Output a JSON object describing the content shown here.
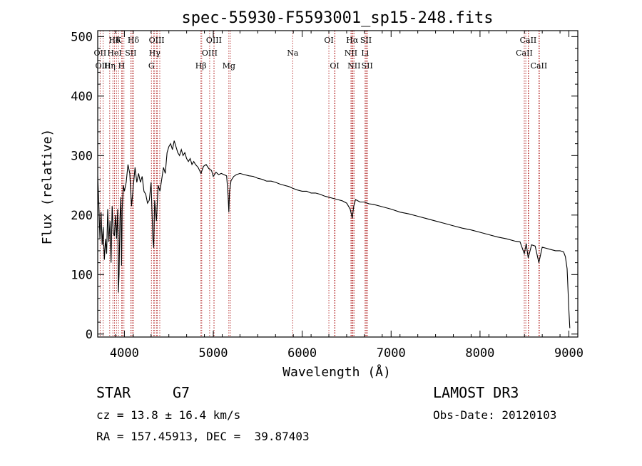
{
  "chart_data": {
    "type": "line",
    "title": "spec-55930-F5593001_sp15-248.fits",
    "xlabel": "Wavelength (Å)",
    "ylabel": "Flux (relative)",
    "xlim": [
      3700,
      9100
    ],
    "ylim": [
      -5,
      510
    ],
    "xticks": [
      4000,
      5000,
      6000,
      7000,
      8000,
      9000
    ],
    "yticks": [
      0,
      100,
      200,
      300,
      400,
      500
    ],
    "grid": false,
    "series": [
      {
        "name": "flux",
        "x": [
          3700,
          3712,
          3725,
          3738,
          3750,
          3762,
          3775,
          3788,
          3800,
          3812,
          3825,
          3838,
          3850,
          3862,
          3875,
          3888,
          3900,
          3912,
          3925,
          3933,
          3940,
          3950,
          3960,
          3968,
          3975,
          3988,
          4000,
          4020,
          4040,
          4060,
          4080,
          4101,
          4120,
          4140,
          4160,
          4180,
          4200,
          4220,
          4240,
          4260,
          4280,
          4300,
          4320,
          4330,
          4340,
          4360,
          4380,
          4400,
          4420,
          4440,
          4460,
          4480,
          4500,
          4520,
          4540,
          4560,
          4580,
          4600,
          4620,
          4640,
          4660,
          4680,
          4700,
          4720,
          4740,
          4760,
          4780,
          4800,
          4830,
          4861,
          4890,
          4920,
          4950,
          4980,
          5000,
          5030,
          5060,
          5090,
          5120,
          5150,
          5167,
          5175,
          5183,
          5200,
          5230,
          5260,
          5300,
          5350,
          5400,
          5450,
          5500,
          5550,
          5600,
          5650,
          5700,
          5750,
          5800,
          5850,
          5893,
          5950,
          6000,
          6050,
          6100,
          6150,
          6200,
          6250,
          6300,
          6350,
          6400,
          6450,
          6500,
          6540,
          6563,
          6580,
          6600,
          6650,
          6700,
          6750,
          6800,
          6900,
          7000,
          7100,
          7200,
          7300,
          7400,
          7500,
          7600,
          7700,
          7800,
          7900,
          8000,
          8100,
          8200,
          8300,
          8400,
          8450,
          8498,
          8520,
          8542,
          8580,
          8620,
          8662,
          8700,
          8750,
          8800,
          8850,
          8900,
          8940,
          8960,
          8980,
          9000,
          9010
        ],
        "values": [
          265,
          220,
          160,
          205,
          150,
          180,
          125,
          160,
          135,
          210,
          155,
          190,
          120,
          215,
          170,
          165,
          200,
          160,
          210,
          70,
          100,
          195,
          230,
          115,
          210,
          250,
          240,
          255,
          285,
          270,
          215,
          250,
          280,
          255,
          270,
          255,
          265,
          240,
          235,
          220,
          225,
          255,
          160,
          145,
          225,
          190,
          250,
          240,
          260,
          280,
          270,
          305,
          315,
          320,
          310,
          325,
          315,
          305,
          300,
          310,
          300,
          305,
          295,
          290,
          295,
          285,
          290,
          285,
          280,
          270,
          282,
          285,
          278,
          275,
          265,
          272,
          268,
          270,
          268,
          266,
          232,
          205,
          240,
          258,
          265,
          268,
          270,
          268,
          266,
          265,
          262,
          260,
          257,
          257,
          255,
          252,
          250,
          248,
          245,
          242,
          240,
          240,
          237,
          237,
          235,
          232,
          230,
          228,
          226,
          224,
          220,
          210,
          195,
          215,
          226,
          222,
          222,
          219,
          218,
          214,
          210,
          205,
          202,
          198,
          194,
          190,
          186,
          182,
          178,
          175,
          171,
          167,
          163,
          160,
          156,
          155,
          135,
          152,
          128,
          150,
          148,
          120,
          146,
          144,
          142,
          140,
          140,
          138,
          130,
          110,
          40,
          10
        ]
      }
    ],
    "spectral_lines": [
      {
        "label": "Hδ",
        "wavelength": 3889,
        "row": 1
      },
      {
        "label": "K",
        "wavelength": 3934,
        "row": 1
      },
      {
        "label": "Hδ",
        "wavelength": 4101,
        "row": 1
      },
      {
        "label": "OIII",
        "wavelength": 4363,
        "row": 1
      },
      {
        "label": "OIII",
        "wavelength": 5007,
        "row": 1
      },
      {
        "label": "OI",
        "wavelength": 6300,
        "row": 1
      },
      {
        "label": "Hα",
        "wavelength": 6563,
        "row": 1
      },
      {
        "label": "SII",
        "wavelength": 6717,
        "row": 1
      },
      {
        "label": "CaII",
        "wavelength": 8542,
        "row": 1
      },
      {
        "label": "OII",
        "wavelength": 3727,
        "row": 2
      },
      {
        "label": "HeI",
        "wavelength": 3889,
        "row": 2
      },
      {
        "label": "SII",
        "wavelength": 4072,
        "row": 2
      },
      {
        "label": "Hγ",
        "wavelength": 4340,
        "row": 2
      },
      {
        "label": "OIII",
        "wavelength": 4959,
        "row": 2
      },
      {
        "label": "Na",
        "wavelength": 5893,
        "row": 2
      },
      {
        "label": "NII",
        "wavelength": 6548,
        "row": 2
      },
      {
        "label": "Li",
        "wavelength": 6707,
        "row": 2
      },
      {
        "label": "CaII",
        "wavelength": 8498,
        "row": 2
      },
      {
        "label": "OIII",
        "wavelength": 3760,
        "row": 3
      },
      {
        "label": "Hη",
        "wavelength": 3835,
        "row": 3
      },
      {
        "label": "H",
        "wavelength": 3968,
        "row": 3
      },
      {
        "label": "G",
        "wavelength": 4304,
        "row": 3
      },
      {
        "label": "Hβ",
        "wavelength": 4861,
        "row": 3
      },
      {
        "label": "Mg",
        "wavelength": 5175,
        "row": 3
      },
      {
        "label": "OI",
        "wavelength": 6364,
        "row": 3
      },
      {
        "label": "NII",
        "wavelength": 6583,
        "row": 3
      },
      {
        "label": "SII",
        "wavelength": 6731,
        "row": 3
      },
      {
        "label": "CaII",
        "wavelength": 8662,
        "row": 3
      }
    ],
    "extra_line_positions": [
      3870,
      3911,
      3976,
      3995,
      4076,
      4092,
      4330,
      4371,
      4398,
      4870,
      5009,
      5192,
      6369,
      6558,
      6571,
      6719,
      6733,
      8515,
      8547,
      8668
    ]
  },
  "info": {
    "object_type": "STAR",
    "subclass": "G7",
    "survey": "LAMOST DR3",
    "redshift": "cz = 13.8 ± 16.4 km/s",
    "obs_date": "Obs-Date: 20120103",
    "coords": "RA = 157.45913, DEC =  39.87403"
  },
  "colors": {
    "spectrum": "#000000",
    "line_markers": "#b22222",
    "axis": "#000000",
    "background": "#ffffff"
  }
}
